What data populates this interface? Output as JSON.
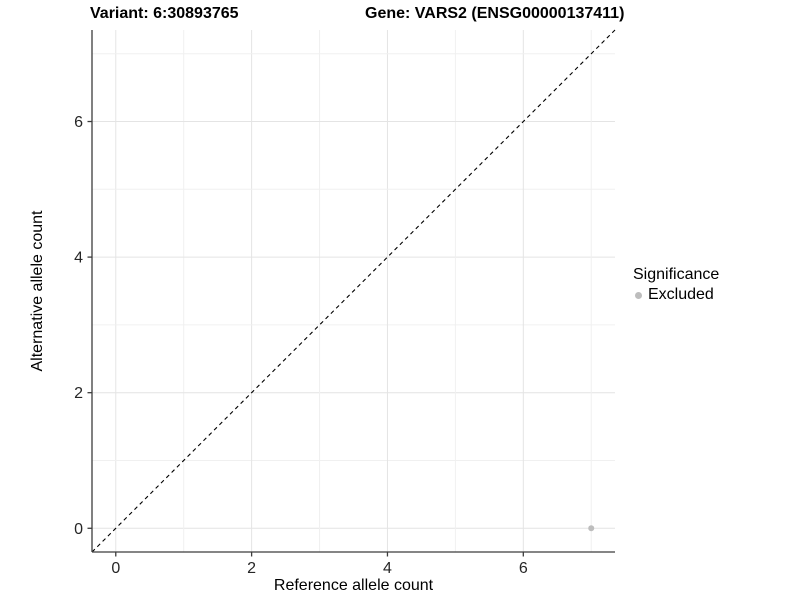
{
  "figure": {
    "background": "#ffffff"
  },
  "chart_data": {
    "type": "scatter",
    "title_left": "Variant: 6:30893765",
    "title_right": "Gene: VARS2 (ENSG00000137411)",
    "xlabel": "Reference allele count",
    "ylabel": "Alternative allele count",
    "xlim": [
      -0.35,
      7.35
    ],
    "ylim": [
      -0.35,
      7.35
    ],
    "xticks": [
      0,
      2,
      4,
      6
    ],
    "yticks": [
      0,
      2,
      4,
      6
    ],
    "grid": {
      "on": true,
      "major_every": 2,
      "minor_every": 1,
      "major_color": "#e4e4e4",
      "minor_color": "#f0f0f0"
    },
    "axis_color": "#3c3c3c",
    "tick_text_color": "#262626",
    "reference_line": {
      "type": "identity y = x",
      "style": "dashed",
      "color": "#000000"
    },
    "legend": {
      "position": "right",
      "title": "Significance",
      "items": [
        {
          "label": "Excluded",
          "color": "#bdbdbd"
        }
      ]
    },
    "series": [
      {
        "name": "Excluded",
        "color": "#bdbdbd",
        "marker": "circle",
        "points": [
          [
            7,
            0
          ]
        ]
      }
    ]
  }
}
